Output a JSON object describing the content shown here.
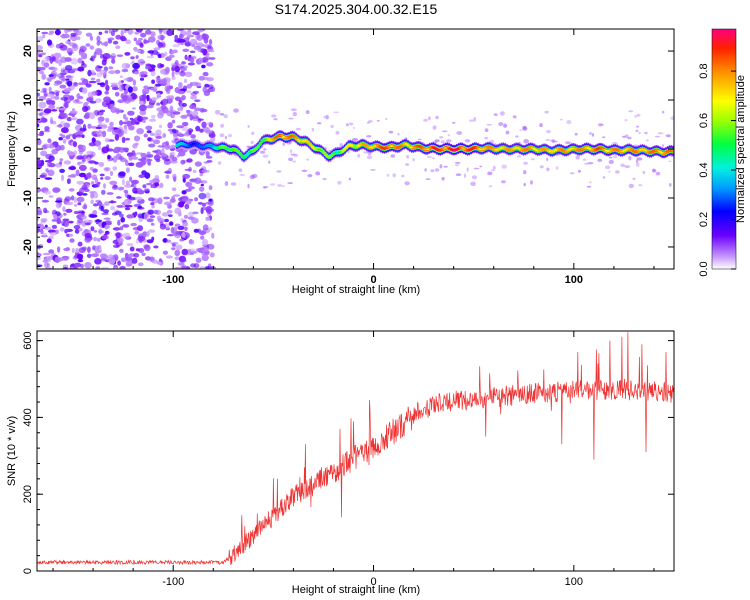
{
  "title": "S174.2025.304.00.32.E15",
  "colors": {
    "snr_line": "#ee3333",
    "axis": "#000000"
  },
  "chart_data": [
    {
      "type": "heatmap",
      "name": "spectrogram",
      "xlabel": "Height of straight line (km)",
      "ylabel": "Frequency (Hz)",
      "xlim": [
        -168,
        150
      ],
      "ylim": [
        -24.5,
        24.5
      ],
      "xticks": [
        {
          "v": -100,
          "label": "-100"
        },
        {
          "v": 0,
          "label": "0"
        },
        {
          "v": 100,
          "label": "100"
        }
      ],
      "yticks": [
        {
          "v": 20,
          "label": "20"
        },
        {
          "v": 10,
          "label": "10"
        },
        {
          "v": 0,
          "label": "0"
        },
        {
          "v": -10,
          "label": "-10"
        },
        {
          "v": -20,
          "label": "-20"
        }
      ],
      "noise_region_x": [
        -168,
        -80
      ],
      "ridge": [
        {
          "x": -98,
          "y": 0.8,
          "a": 0.45
        },
        {
          "x": -92,
          "y": 1.0,
          "a": 0.3
        },
        {
          "x": -85,
          "y": 0.6,
          "a": 0.3
        },
        {
          "x": -80,
          "y": 0.5,
          "a": 0.45
        },
        {
          "x": -75,
          "y": 0.2,
          "a": 0.6
        },
        {
          "x": -70,
          "y": 0.0,
          "a": 0.6
        },
        {
          "x": -65,
          "y": -1.5,
          "a": 0.55
        },
        {
          "x": -60,
          "y": -0.5,
          "a": 0.6
        },
        {
          "x": -56,
          "y": 1.5,
          "a": 0.55
        },
        {
          "x": -52,
          "y": 2.0,
          "a": 0.75
        },
        {
          "x": -46,
          "y": 2.6,
          "a": 0.95
        },
        {
          "x": -40,
          "y": 2.4,
          "a": 0.85
        },
        {
          "x": -34,
          "y": 1.5,
          "a": 0.8
        },
        {
          "x": -28,
          "y": 0.0,
          "a": 0.7
        },
        {
          "x": -22,
          "y": -1.5,
          "a": 0.6
        },
        {
          "x": -18,
          "y": -0.8,
          "a": 0.6
        },
        {
          "x": -12,
          "y": 0.6,
          "a": 0.75
        },
        {
          "x": -6,
          "y": 0.8,
          "a": 0.8
        },
        {
          "x": 0,
          "y": 0.5,
          "a": 0.85
        },
        {
          "x": 8,
          "y": 0.3,
          "a": 0.95
        },
        {
          "x": 16,
          "y": 0.8,
          "a": 0.8
        },
        {
          "x": 24,
          "y": 0.2,
          "a": 0.9
        },
        {
          "x": 32,
          "y": 0.0,
          "a": 0.95
        },
        {
          "x": 40,
          "y": 0.0,
          "a": 1.0
        },
        {
          "x": 48,
          "y": 0.0,
          "a": 0.95
        },
        {
          "x": 56,
          "y": 0.2,
          "a": 0.85
        },
        {
          "x": 64,
          "y": 0.0,
          "a": 0.8
        },
        {
          "x": 72,
          "y": 0.0,
          "a": 0.85
        },
        {
          "x": 80,
          "y": 0.0,
          "a": 0.85
        },
        {
          "x": 88,
          "y": -0.3,
          "a": 0.8
        },
        {
          "x": 96,
          "y": -0.2,
          "a": 0.85
        },
        {
          "x": 104,
          "y": 0.0,
          "a": 0.85
        },
        {
          "x": 112,
          "y": 0.0,
          "a": 0.9
        },
        {
          "x": 120,
          "y": -0.3,
          "a": 0.85
        },
        {
          "x": 128,
          "y": -0.2,
          "a": 0.85
        },
        {
          "x": 136,
          "y": -0.4,
          "a": 0.85
        },
        {
          "x": 144,
          "y": -0.6,
          "a": 0.9
        },
        {
          "x": 150,
          "y": -0.5,
          "a": 0.85
        }
      ]
    },
    {
      "type": "line",
      "name": "snr",
      "xlabel": "Height of straight line (km)",
      "ylabel": "SNR (10 * v/v)",
      "xlim": [
        -168,
        150
      ],
      "ylim": [
        0,
        625
      ],
      "xticks": [
        {
          "v": -100,
          "label": "-100"
        },
        {
          "v": 0,
          "label": "0"
        },
        {
          "v": 100,
          "label": "100"
        }
      ],
      "yticks": [
        {
          "v": 0,
          "label": "0"
        },
        {
          "v": 200,
          "label": "200"
        },
        {
          "v": 400,
          "label": "400"
        },
        {
          "v": 600,
          "label": "600"
        }
      ],
      "trend": [
        {
          "x": -168,
          "y": 22
        },
        {
          "x": -75,
          "y": 22
        },
        {
          "x": -70,
          "y": 40
        },
        {
          "x": -60,
          "y": 90
        },
        {
          "x": -50,
          "y": 140
        },
        {
          "x": -40,
          "y": 190
        },
        {
          "x": -30,
          "y": 220
        },
        {
          "x": -20,
          "y": 255
        },
        {
          "x": -10,
          "y": 290
        },
        {
          "x": 0,
          "y": 320
        },
        {
          "x": 10,
          "y": 360
        },
        {
          "x": 20,
          "y": 400
        },
        {
          "x": 30,
          "y": 430
        },
        {
          "x": 40,
          "y": 440
        },
        {
          "x": 60,
          "y": 450
        },
        {
          "x": 80,
          "y": 460
        },
        {
          "x": 100,
          "y": 465
        },
        {
          "x": 120,
          "y": 470
        },
        {
          "x": 140,
          "y": 465
        },
        {
          "x": 150,
          "y": 460
        }
      ],
      "spikes": [
        {
          "x": 22,
          "y": 440
        },
        {
          "x": 58,
          "y": 515
        },
        {
          "x": 85,
          "y": 525
        },
        {
          "x": 102,
          "y": 570
        },
        {
          "x": 112,
          "y": 540
        },
        {
          "x": 118,
          "y": 600
        },
        {
          "x": 124,
          "y": 610
        },
        {
          "x": 127,
          "y": 622
        },
        {
          "x": 134,
          "y": 590
        },
        {
          "x": 110,
          "y": 290
        },
        {
          "x": 94,
          "y": 330
        },
        {
          "x": 136,
          "y": 310
        },
        {
          "x": -10,
          "y": 390
        },
        {
          "x": -34,
          "y": 330
        },
        {
          "x": 56,
          "y": 350
        },
        {
          "x": -58,
          "y": 150
        },
        {
          "x": -48,
          "y": 240
        },
        {
          "x": -26,
          "y": 270
        },
        {
          "x": -16,
          "y": 140
        },
        {
          "x": 146,
          "y": 570
        }
      ]
    },
    {
      "type": "colorbar",
      "name": "colorbar",
      "label": "Normalized spectral amplitude",
      "range": [
        0,
        0.97
      ],
      "ticks": [
        {
          "v": 0.0,
          "label": "0.0"
        },
        {
          "v": 0.2,
          "label": "0.2"
        },
        {
          "v": 0.4,
          "label": "0.4"
        },
        {
          "v": 0.6,
          "label": "0.6"
        },
        {
          "v": 0.8,
          "label": "0.8"
        }
      ]
    }
  ]
}
